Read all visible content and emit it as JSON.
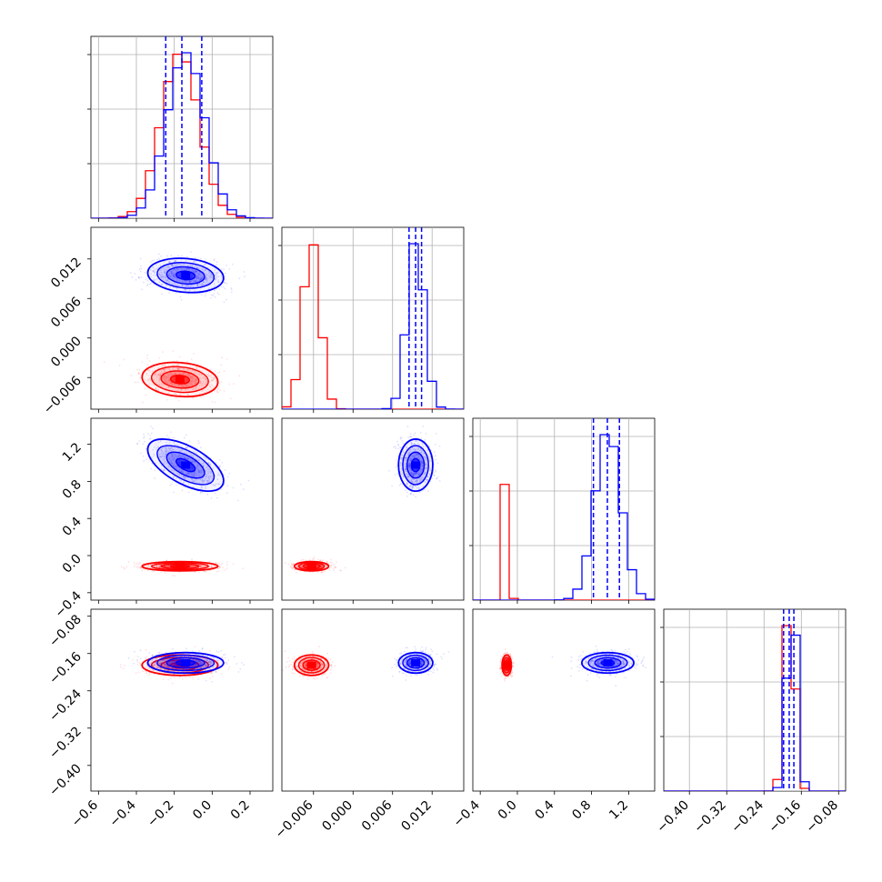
{
  "chart_data": {
    "type": "corner",
    "parameters": 4,
    "colors": {
      "red": "#ff0000",
      "blue": "#0000ff"
    },
    "series": [
      {
        "color": "#ff0000",
        "means": [
          -0.17,
          -0.0063,
          -0.115,
          -0.185
        ],
        "sds": [
          0.1,
          0.0013,
          0.025,
          0.011
        ],
        "rho01": -0.15
      },
      {
        "color": "#0000ff",
        "means": [
          -0.14,
          0.0095,
          0.975,
          -0.18
        ],
        "sds": [
          0.1,
          0.0013,
          0.14,
          0.011
        ],
        "rho01": -0.15,
        "rho02": -0.6
      }
    ],
    "ranges": [
      [
        -0.64,
        0.32
      ],
      [
        -0.0108,
        0.0168
      ],
      [
        -0.48,
        1.48
      ],
      [
        -0.455,
        -0.065
      ]
    ],
    "x_ticks": {
      "0": [
        "-0.6",
        "-0.4",
        "-0.2",
        "0.0",
        "0.2"
      ],
      "1": [
        "-0.006",
        "0.000",
        "0.006",
        "0.012"
      ],
      "2": [
        "-0.4",
        "0.0",
        "0.4",
        "0.8",
        "1.2"
      ],
      "3": [
        "-0.40",
        "-0.32",
        "-0.24",
        "-0.16",
        "-0.08"
      ]
    },
    "y_ticks": {
      "1": [
        "0.012",
        "0.006",
        "0.000",
        "-0.006"
      ],
      "2": [
        "1.2",
        "0.8",
        "0.4",
        "0.0",
        "-0.4"
      ],
      "3": [
        "-0.08",
        "-0.16",
        "-0.24",
        "-0.32",
        "-0.40"
      ]
    },
    "quantile_lines": {
      "0": [
        -0.245,
        -0.16,
        -0.055
      ],
      "1": [
        0.0085,
        0.0095,
        0.0104
      ],
      "2": [
        0.82,
        0.97,
        1.1
      ],
      "3": [
        -0.198,
        -0.186,
        -0.176
      ]
    },
    "grid": true
  }
}
